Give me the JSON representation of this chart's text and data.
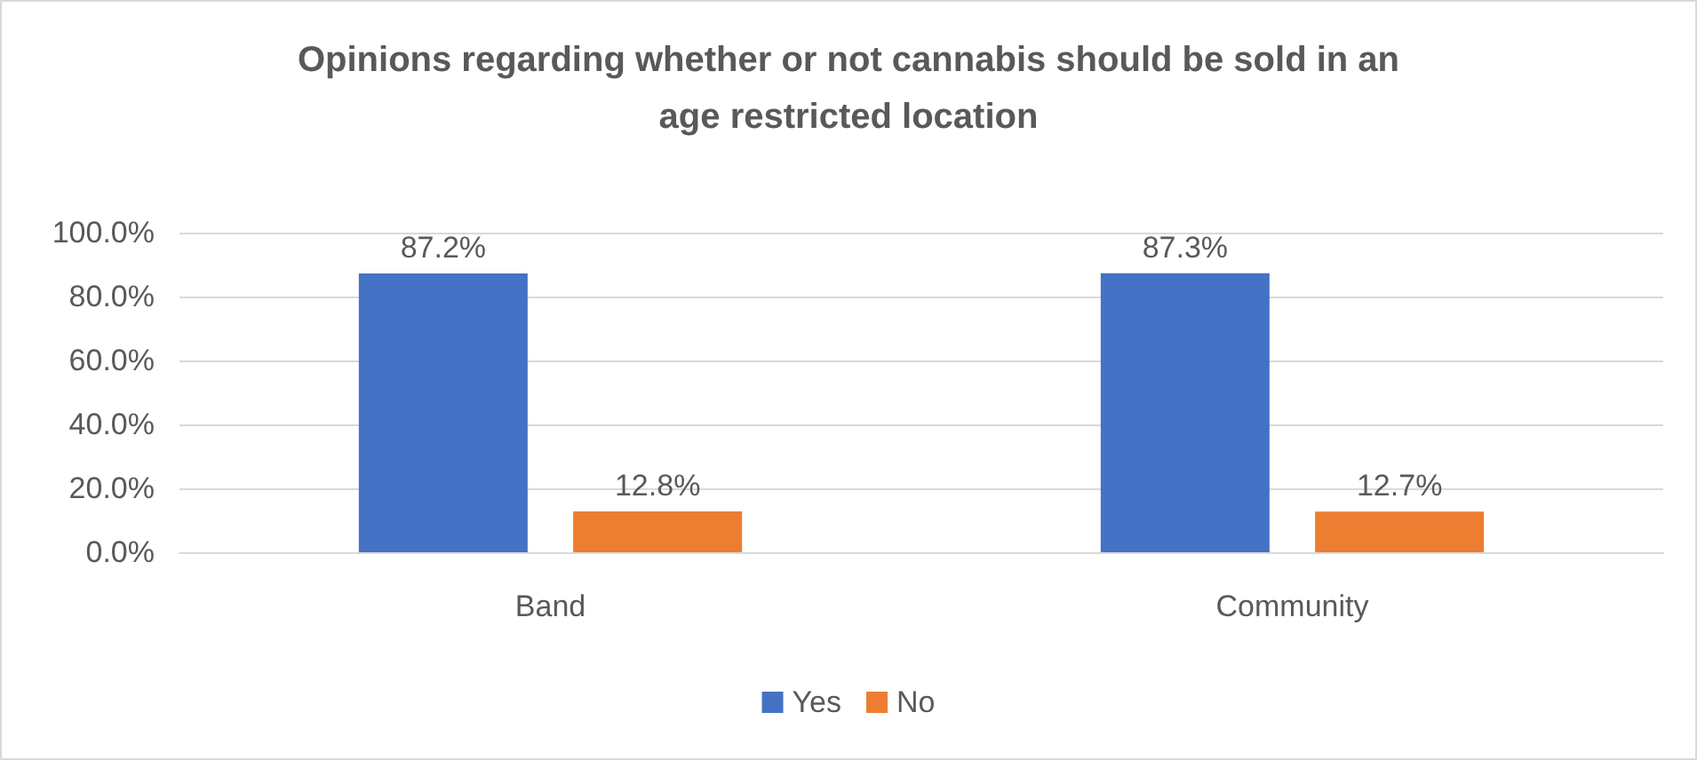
{
  "chart_data": {
    "type": "bar",
    "title": "Opinions regarding whether or not cannabis should be sold in an\nage restricted location",
    "categories": [
      "Band",
      "Community"
    ],
    "series": [
      {
        "name": "Yes",
        "color": "#4472c4",
        "values": [
          87.2,
          87.3
        ],
        "value_labels": [
          "87.2%",
          "87.3%"
        ]
      },
      {
        "name": "No",
        "color": "#ed7d31",
        "values": [
          12.8,
          12.7
        ],
        "value_labels": [
          "12.8%",
          "12.7%"
        ]
      }
    ],
    "ylim": [
      0,
      100
    ],
    "yticks": [
      {
        "value": 0,
        "label": "0.0%"
      },
      {
        "value": 20,
        "label": "20.0%"
      },
      {
        "value": 40,
        "label": "40.0%"
      },
      {
        "value": 60,
        "label": "60.0%"
      },
      {
        "value": 80,
        "label": "80.0%"
      },
      {
        "value": 100,
        "label": "100.0%"
      }
    ],
    "grid": "y",
    "legend": "bottom"
  }
}
